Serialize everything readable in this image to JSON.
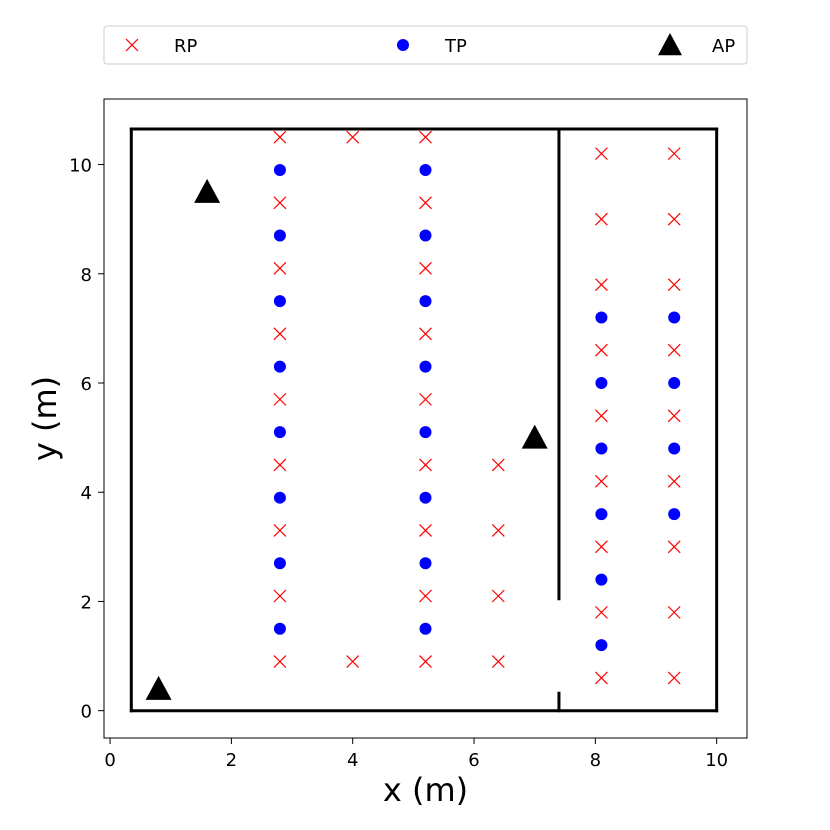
{
  "chart_data": {
    "type": "scatter",
    "xlabel": "x (m)",
    "ylabel": "y (m)",
    "xlim": [
      -0.1,
      10.5
    ],
    "ylim": [
      -0.5,
      11.2
    ],
    "xticks": [
      0,
      2,
      4,
      6,
      8,
      10
    ],
    "yticks": [
      0,
      2,
      4,
      6,
      8,
      10
    ],
    "grid": false,
    "legend_placement": "top, outside plot",
    "series": [
      {
        "name": "RP",
        "marker": "x",
        "color": "#ff0000",
        "points": [
          [
            2.8,
            10.5
          ],
          [
            4.0,
            10.5
          ],
          [
            5.2,
            10.5
          ],
          [
            2.8,
            9.3
          ],
          [
            2.8,
            8.1
          ],
          [
            2.8,
            6.9
          ],
          [
            2.8,
            5.7
          ],
          [
            2.8,
            4.5
          ],
          [
            2.8,
            3.3
          ],
          [
            2.8,
            2.1
          ],
          [
            2.8,
            0.9
          ],
          [
            5.2,
            9.3
          ],
          [
            5.2,
            8.1
          ],
          [
            5.2,
            6.9
          ],
          [
            5.2,
            5.7
          ],
          [
            5.2,
            4.5
          ],
          [
            5.2,
            3.3
          ],
          [
            5.2,
            2.1
          ],
          [
            5.2,
            0.9
          ],
          [
            4.0,
            0.9
          ],
          [
            6.4,
            4.5
          ],
          [
            6.4,
            3.3
          ],
          [
            6.4,
            2.1
          ],
          [
            6.4,
            0.9
          ],
          [
            8.1,
            10.2
          ],
          [
            8.1,
            9.0
          ],
          [
            8.1,
            7.8
          ],
          [
            8.1,
            6.6
          ],
          [
            8.1,
            5.4
          ],
          [
            8.1,
            4.2
          ],
          [
            8.1,
            3.0
          ],
          [
            8.1,
            1.8
          ],
          [
            8.1,
            0.6
          ],
          [
            9.3,
            10.2
          ],
          [
            9.3,
            9.0
          ],
          [
            9.3,
            7.8
          ],
          [
            9.3,
            6.6
          ],
          [
            9.3,
            5.4
          ],
          [
            9.3,
            4.2
          ],
          [
            9.3,
            3.0
          ],
          [
            9.3,
            1.8
          ],
          [
            9.3,
            0.6
          ]
        ]
      },
      {
        "name": "TP",
        "marker": "o",
        "color": "#0000ff",
        "points": [
          [
            2.8,
            9.9
          ],
          [
            2.8,
            8.7
          ],
          [
            2.8,
            7.5
          ],
          [
            2.8,
            6.3
          ],
          [
            2.8,
            5.1
          ],
          [
            2.8,
            3.9
          ],
          [
            2.8,
            2.7
          ],
          [
            2.8,
            1.5
          ],
          [
            5.2,
            9.9
          ],
          [
            5.2,
            8.7
          ],
          [
            5.2,
            7.5
          ],
          [
            5.2,
            6.3
          ],
          [
            5.2,
            5.1
          ],
          [
            5.2,
            3.9
          ],
          [
            5.2,
            2.7
          ],
          [
            5.2,
            1.5
          ],
          [
            8.1,
            7.2
          ],
          [
            8.1,
            6.0
          ],
          [
            8.1,
            4.8
          ],
          [
            8.1,
            3.6
          ],
          [
            8.1,
            2.4
          ],
          [
            8.1,
            1.2
          ],
          [
            9.3,
            7.2
          ],
          [
            9.3,
            6.0
          ],
          [
            9.3,
            4.8
          ],
          [
            9.3,
            3.6
          ]
        ]
      },
      {
        "name": "AP",
        "marker": "^",
        "color": "#000000",
        "points": [
          [
            1.6,
            9.5
          ],
          [
            0.8,
            0.4
          ],
          [
            7.0,
            5.0
          ]
        ]
      }
    ],
    "walls": [
      [
        [
          0.35,
          0.0
        ],
        [
          10.0,
          0.0
        ]
      ],
      [
        [
          10.0,
          0.0
        ],
        [
          10.0,
          10.65
        ]
      ],
      [
        [
          10.0,
          10.65
        ],
        [
          0.35,
          10.65
        ]
      ],
      [
        [
          0.35,
          10.65
        ],
        [
          0.35,
          0.0
        ]
      ],
      [
        [
          7.4,
          10.65
        ],
        [
          7.4,
          2.05
        ]
      ],
      [
        [
          7.4,
          0.0
        ],
        [
          7.4,
          0.32
        ]
      ]
    ]
  }
}
